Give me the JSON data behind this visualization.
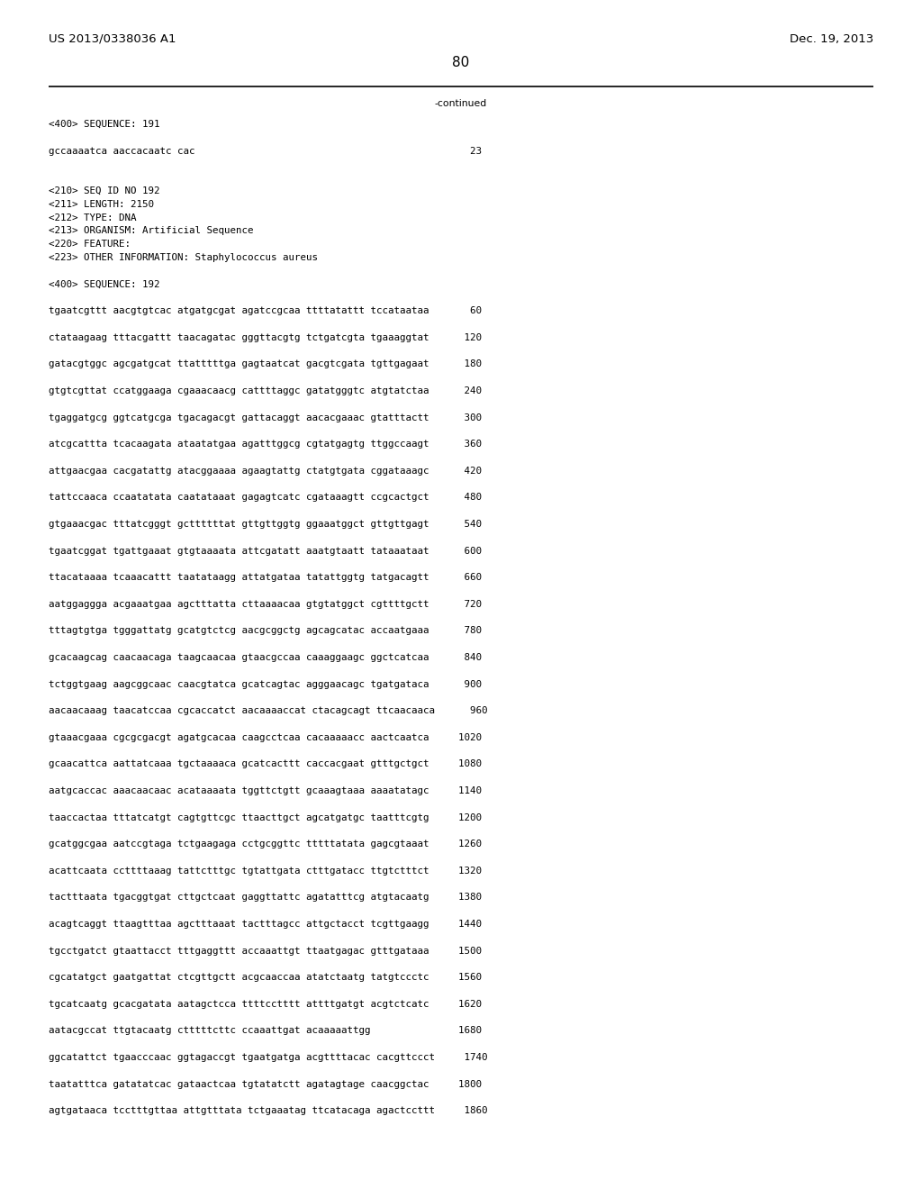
{
  "patent_number": "US 2013/0338036 A1",
  "date": "Dec. 19, 2013",
  "page_number": "80",
  "continued_text": "-continued",
  "background_color": "#ffffff",
  "text_color": "#000000",
  "body_font_size": 7.8,
  "header_font_size": 9.5,
  "page_num_font_size": 11,
  "sequence_lines": [
    "<400> SEQUENCE: 191",
    "",
    "gccaaaatca aaccacaatc cac                                               23",
    "",
    "",
    "<210> SEQ ID NO 192",
    "<211> LENGTH: 2150",
    "<212> TYPE: DNA",
    "<213> ORGANISM: Artificial Sequence",
    "<220> FEATURE:",
    "<223> OTHER INFORMATION: Staphylococcus aureus",
    "",
    "<400> SEQUENCE: 192",
    "",
    "tgaatcgttt aacgtgtcac atgatgcgat agatccgcaa ttttatattt tccataataa       60",
    "",
    "ctataagaag tttacgattt taacagatac gggttacgtg tctgatcgta tgaaaggtat      120",
    "",
    "gatacgtggc agcgatgcat ttatttttga gagtaatcat gacgtcgata tgttgagaat      180",
    "",
    "gtgtcgttat ccatggaaga cgaaacaacg cattttaggc gatatgggtc atgtatctaa      240",
    "",
    "tgaggatgcg ggtcatgcga tgacagacgt gattacaggt aacacgaaac gtatttactt      300",
    "",
    "atcgcattta tcacaagata ataatatgaa agatttggcg cgtatgagtg ttggccaagt      360",
    "",
    "attgaacgaa cacgatattg atacggaaaa agaagtattg ctatgtgata cggataaagc      420",
    "",
    "tattccaaca ccaatatata caatataaat gagagtcatc cgataaagtt ccgcactgct      480",
    "",
    "gtgaaacgac tttatcgggt gcttttttat gttgttggtg ggaaatggct gttgttgagt      540",
    "",
    "tgaatcggat tgattgaaat gtgtaaaata attcgatatt aaatgtaatt tataaataat      600",
    "",
    "ttacataaaa tcaaacattt taatataagg attatgataa tatattggtg tatgacagtt      660",
    "",
    "aatggaggga acgaaatgaa agctttatta cttaaaacaa gtgtatggct cgttttgctt      720",
    "",
    "tttagtgtga tgggattatg gcatgtctcg aacgcggctg agcagcatac accaatgaaa      780",
    "",
    "gcacaagcag caacaacaga taagcaacaa gtaacgccaa caaaggaagc ggctcatcaa      840",
    "",
    "tctggtgaag aagcggcaac caacgtatca gcatcagtac agggaacagc tgatgataca      900",
    "",
    "aacaacaaag taacatccaa cgcaccatct aacaaaaccat ctacagcagt ttcaacaaca      960",
    "",
    "gtaaacgaaa cgcgcgacgt agatgcacaa caagcctcaa cacaaaaacc aactcaatca     1020",
    "",
    "gcaacattca aattatcaaa tgctaaaaca gcatcacttt caccacgaat gtttgctgct     1080",
    "",
    "aatgcaccac aaacaacaac acataaaata tggttctgtt gcaaagtaaa aaaatatagc     1140",
    "",
    "taaccactaa tttatcatgt cagtgttcgc ttaacttgct agcatgatgc taatttcgtg     1200",
    "",
    "gcatggcgaa aatccgtaga tctgaagaga cctgcggttc tttttatata gagcgtaaat     1260",
    "",
    "acattcaata ccttttaaag tattctttgc tgtattgata ctttgatacc ttgtctttct     1320",
    "",
    "tactttaata tgacggtgat cttgctcaat gaggttattc agatatttcg atgtacaatg     1380",
    "",
    "acagtcaggt ttaagtttaa agctttaaat tactttagcc attgctacct tcgttgaagg     1440",
    "",
    "tgcctgatct gtaattacct tttgaggttt accaaattgt ttaatgagac gtttgataaa     1500",
    "",
    "cgcatatgct gaatgattat ctcgttgctt acgcaaccaa atatctaatg tatgtccctc     1560",
    "",
    "tgcatcaatg gcacgatata aatagctcca ttttcctttt attttgatgt acgtctcatc     1620",
    "",
    "aatacgccat ttgtacaatg ctttttcttc ccaaattgat acaaaaattgg               1680",
    "",
    "ggcatattct tgaacccaac ggtagaccgt tgaatgatga acgttttacac cacgttccct     1740",
    "",
    "taatatttca gatatatcac gataactcaa tgtatatctt agatagtage caacggctac     1800",
    "",
    "agtgataaca tcctttgttaa attgtttata tctgaaatag ttcatacaga agactccttt     1860"
  ]
}
